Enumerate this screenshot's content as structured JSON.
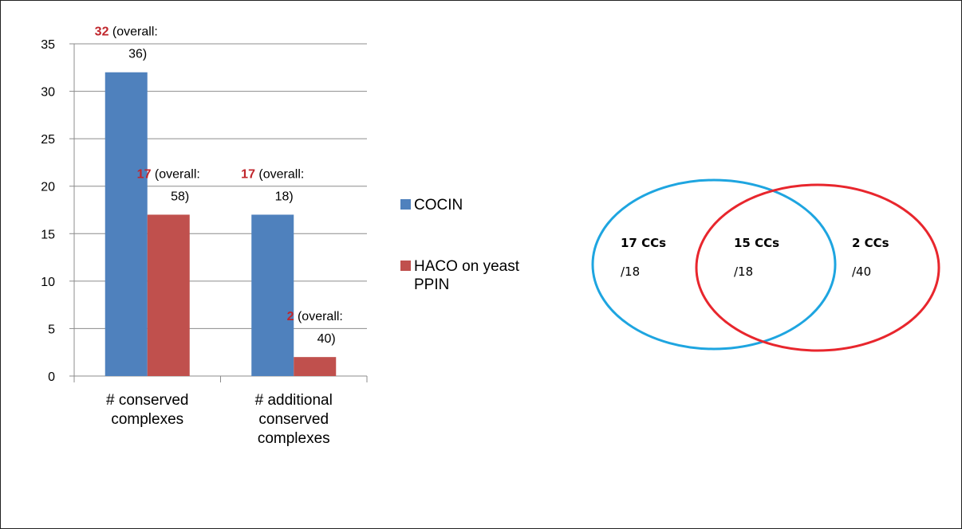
{
  "chart_data": [
    {
      "type": "bar",
      "categories": [
        [
          "# conserved",
          "complexes"
        ],
        [
          "# additional",
          "conserved",
          "complexes"
        ]
      ],
      "series": [
        {
          "name": "COCIN",
          "color": "#4f81bd",
          "values": [
            32,
            17
          ],
          "labels": [
            {
              "value": "32",
              "text1": "(overall:",
              "text2": "36)"
            },
            {
              "value": "17",
              "text1": "(overall:",
              "text2": "18)"
            }
          ]
        },
        {
          "name": "HACO on yeast PPIN",
          "legend_lines": [
            "HACO on yeast",
            "PPIN"
          ],
          "color": "#c0504d",
          "values": [
            17,
            2
          ],
          "labels": [
            {
              "value": "17",
              "text1": "(overall:",
              "text2": "58)"
            },
            {
              "value": "2",
              "text1": "(overall:",
              "text2": "40)"
            }
          ]
        }
      ],
      "ylim": [
        0,
        35
      ],
      "yticks": [
        "0",
        "5",
        "10",
        "15",
        "20",
        "25",
        "30",
        "35"
      ],
      "grid": true,
      "legend_placement": "right"
    },
    {
      "type": "venn",
      "sets": [
        {
          "name": "COCIN",
          "color": "#1ea5e0"
        },
        {
          "name": "HACO",
          "color": "#e8262d"
        }
      ],
      "regions": [
        {
          "id": "left-only",
          "count": "17 CCs",
          "total": "/18"
        },
        {
          "id": "intersection",
          "count": "15 CCs",
          "total": "/18"
        },
        {
          "id": "right-only",
          "count": "2 CCs",
          "total": "/40"
        }
      ]
    }
  ]
}
